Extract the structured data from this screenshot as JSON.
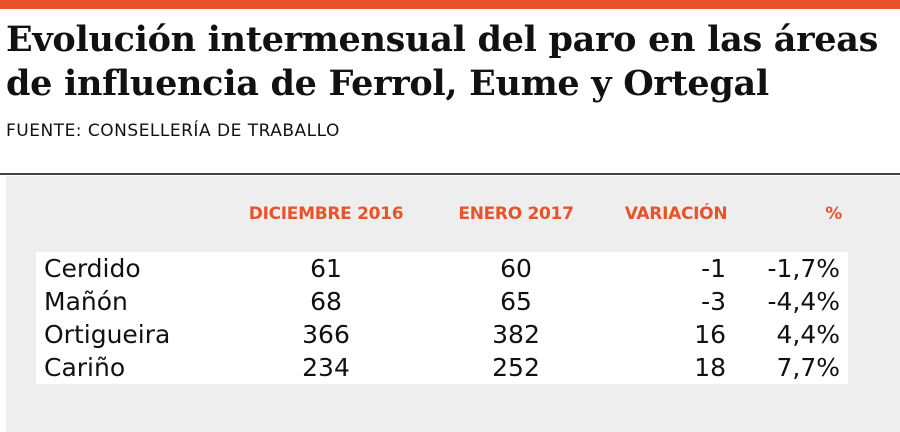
{
  "header": {
    "title": "Evolución intermensual del paro en las áreas de influencia de Ferrol, Eume y Ortegal",
    "source": "FUENTE: CONSELLERÍA DE TRABALLO",
    "accent_color": "#e8542a"
  },
  "chart_data": {
    "type": "table",
    "columns": [
      "",
      "DICIEMBRE 2016",
      "ENERO 2017",
      "VARIACIÓN",
      "%"
    ],
    "rows": [
      {
        "name": "Cerdido",
        "diciembre_2016": "61",
        "enero_2017": "60",
        "variacion": "-1",
        "pct": "-1,7%"
      },
      {
        "name": "Mañón",
        "diciembre_2016": "68",
        "enero_2017": "65",
        "variacion": "-3",
        "pct": "-4,4%"
      },
      {
        "name": "Ortigueira",
        "diciembre_2016": "366",
        "enero_2017": "382",
        "variacion": "16",
        "pct": "4,4%"
      },
      {
        "name": "Cariño",
        "diciembre_2016": "234",
        "enero_2017": "252",
        "variacion": "18",
        "pct": "7,7%"
      }
    ]
  }
}
